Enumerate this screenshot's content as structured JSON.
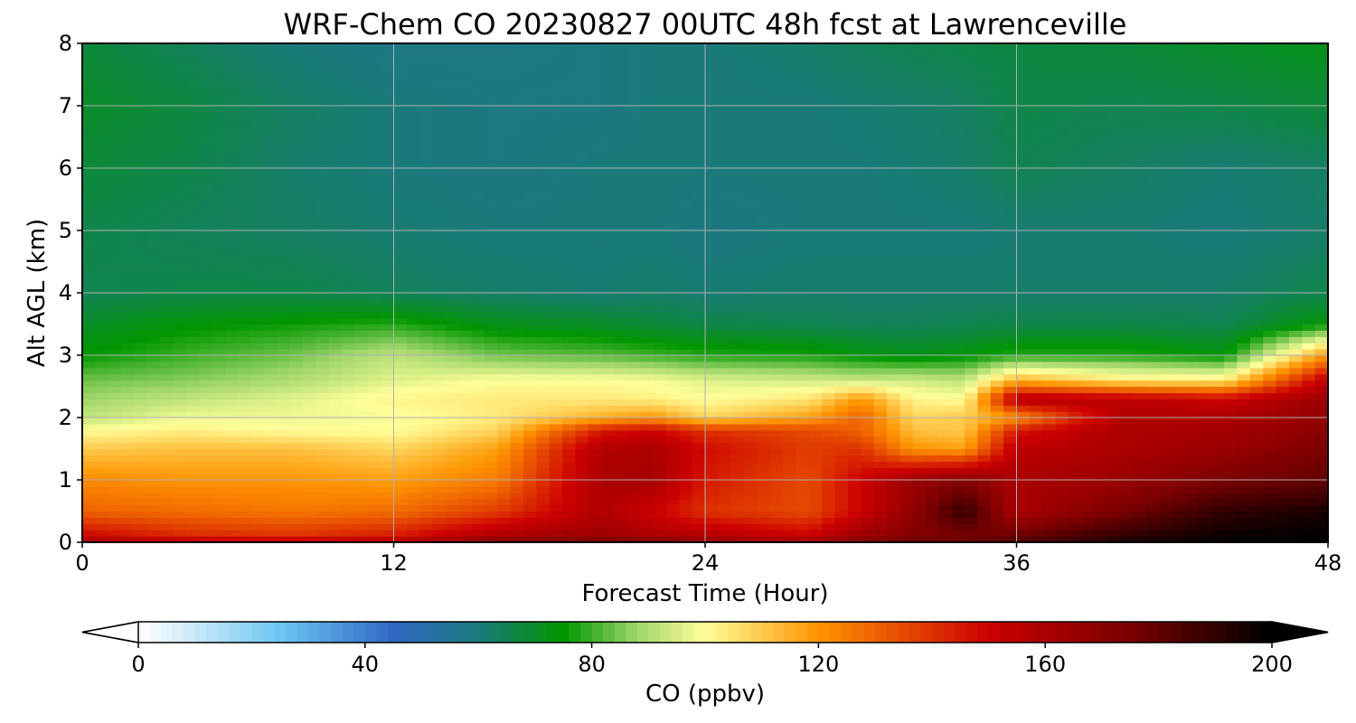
{
  "chart_data": {
    "type": "heatmap",
    "title": "WRF-Chem CO  20230827 00UTC 48h fcst at Lawrenceville",
    "xlabel": "Forecast Time (Hour)",
    "ylabel": "Alt AGL (km)",
    "xlim": [
      0,
      48
    ],
    "ylim": [
      0,
      8
    ],
    "xticks": [
      0,
      12,
      24,
      36,
      48
    ],
    "xtick_labels": [
      "0",
      "12",
      "24",
      "36",
      "48"
    ],
    "yticks": [
      0,
      1,
      2,
      3,
      4,
      5,
      6,
      7,
      8
    ],
    "ytick_labels": [
      "0",
      "1",
      "2",
      "3",
      "4",
      "5",
      "6",
      "7",
      "8"
    ],
    "grid": true,
    "colorbar": {
      "label": "CO  (ppbv)",
      "range": [
        0,
        200
      ],
      "extend": "both",
      "ticks": [
        0,
        40,
        80,
        120,
        160,
        200
      ],
      "tick_labels": [
        "0",
        "40",
        "80",
        "120",
        "160",
        "200"
      ],
      "stops": [
        {
          "value": 0,
          "color": "#ffffff"
        },
        {
          "value": 10,
          "color": "#c9e8f8"
        },
        {
          "value": 25,
          "color": "#6cc6f2"
        },
        {
          "value": 45,
          "color": "#2f67c4"
        },
        {
          "value": 60,
          "color": "#1a7a7a"
        },
        {
          "value": 75,
          "color": "#009600"
        },
        {
          "value": 88,
          "color": "#9fd66a"
        },
        {
          "value": 100,
          "color": "#ffff9a"
        },
        {
          "value": 120,
          "color": "#ff9400"
        },
        {
          "value": 150,
          "color": "#cc0000"
        },
        {
          "value": 175,
          "color": "#7a0000"
        },
        {
          "value": 200,
          "color": "#000000"
        }
      ]
    },
    "times": [
      0,
      4,
      8,
      12,
      16,
      20,
      22,
      24,
      28,
      30,
      32,
      34,
      36,
      40,
      44,
      48
    ],
    "altitudes": [
      0,
      0.1,
      0.5,
      1.0,
      1.5,
      1.8,
      2.0,
      2.3,
      2.6,
      3.0,
      3.5,
      4.0,
      5.0,
      6.0,
      7.0,
      8.0
    ],
    "values": [
      [
        165,
        160,
        158,
        162,
        175,
        180,
        178,
        170,
        168,
        175,
        182,
        180,
        185,
        195,
        200,
        200
      ],
      [
        150,
        142,
        140,
        145,
        160,
        165,
        160,
        158,
        150,
        165,
        172,
        175,
        178,
        190,
        198,
        200
      ],
      [
        130,
        128,
        126,
        128,
        138,
        158,
        150,
        140,
        135,
        150,
        168,
        190,
        160,
        175,
        190,
        195
      ],
      [
        122,
        120,
        120,
        118,
        125,
        160,
        162,
        145,
        135,
        150,
        165,
        172,
        160,
        165,
        175,
        180
      ],
      [
        110,
        112,
        112,
        108,
        118,
        158,
        160,
        148,
        138,
        140,
        120,
        118,
        155,
        160,
        165,
        175
      ],
      [
        100,
        103,
        100,
        100,
        108,
        145,
        150,
        140,
        135,
        130,
        112,
        110,
        145,
        160,
        162,
        170
      ],
      [
        92,
        98,
        98,
        99,
        104,
        115,
        120,
        108,
        118,
        130,
        108,
        110,
        120,
        158,
        160,
        168
      ],
      [
        88,
        92,
        96,
        102,
        104,
        104,
        103,
        100,
        105,
        120,
        102,
        100,
        158,
        155,
        150,
        165
      ],
      [
        84,
        86,
        90,
        96,
        100,
        100,
        99,
        96,
        94,
        93,
        94,
        92,
        115,
        105,
        104,
        155
      ],
      [
        75,
        80,
        84,
        92,
        84,
        82,
        80,
        78,
        77,
        74,
        72,
        74,
        78,
        78,
        74,
        120
      ],
      [
        70,
        74,
        76,
        78,
        72,
        70,
        68,
        66,
        65,
        64,
        64,
        65,
        66,
        66,
        65,
        75
      ],
      [
        65,
        66,
        66,
        64,
        62,
        61,
        62,
        61,
        62,
        62,
        62,
        62,
        62,
        62,
        62,
        66
      ],
      [
        66,
        64,
        63,
        61,
        60,
        60,
        60,
        59,
        60,
        60,
        60,
        60,
        61,
        61,
        60,
        62
      ],
      [
        68,
        66,
        62,
        60,
        59,
        60,
        60,
        60,
        60,
        60,
        61,
        62,
        65,
        63,
        61,
        63
      ],
      [
        70,
        67,
        63,
        60,
        59,
        59,
        60,
        60,
        60,
        61,
        62,
        63,
        66,
        65,
        66,
        68
      ],
      [
        68,
        64,
        60,
        58,
        58,
        59,
        60,
        60,
        62,
        64,
        65,
        66,
        67,
        68,
        70,
        72
      ]
    ]
  }
}
